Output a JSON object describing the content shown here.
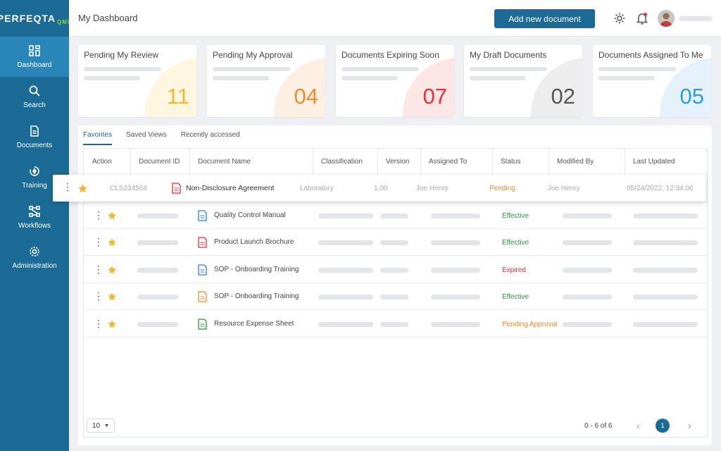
{
  "brand": {
    "logo_text": "PERFEQTA",
    "logo_sub": "QMS"
  },
  "sidebar": {
    "items": [
      {
        "label": "Dashboard",
        "icon": "dashboard-icon",
        "active": true
      },
      {
        "label": "Search",
        "icon": "search-icon",
        "active": false
      },
      {
        "label": "Documents",
        "icon": "document-icon",
        "active": false
      },
      {
        "label": "Training",
        "icon": "training-icon",
        "active": false
      },
      {
        "label": "Workflows",
        "icon": "workflow-icon",
        "active": false
      },
      {
        "label": "Administration",
        "icon": "gear-icon",
        "active": false
      }
    ]
  },
  "header": {
    "title": "My Dashboard",
    "add_button": "Add new document",
    "settings_icon": "gear-icon",
    "bell_icon": "bell-icon"
  },
  "cards": [
    {
      "title": "Pending My Review",
      "count": "11",
      "color": "#f2b632",
      "arc": "#fdf6e1"
    },
    {
      "title": "Pending My Approval",
      "count": "04",
      "color": "#f08a2c",
      "arc": "#fdefe1"
    },
    {
      "title": "Documents Expiring Soon",
      "count": "07",
      "color": "#e5323a",
      "arc": "#fde6e6"
    },
    {
      "title": "My Draft Documents",
      "count": "02",
      "color": "#555555",
      "arc": "#ededed"
    },
    {
      "title": "Documents Assigned To Me",
      "count": "05",
      "color": "#2e9be0",
      "arc": "#e5f2fb"
    }
  ],
  "tabs": [
    {
      "label": "Favorites",
      "active": true
    },
    {
      "label": "Saved Views",
      "active": false
    },
    {
      "label": "Recently accessed",
      "active": false
    }
  ],
  "table": {
    "columns": [
      "Action",
      "Document ID",
      "Document Name",
      "Classification",
      "Version",
      "Assigned To",
      "Status",
      "Modified By",
      "Last Updated"
    ],
    "highlight_row": {
      "id": "CLS234564",
      "name": "Non-Disclosure Agreement",
      "classification": "Laboratory",
      "version": "1.00",
      "assigned_to": "Joe Henry",
      "status": "Pending",
      "modified_by": "Joe Henry",
      "last_updated": "05/24/2022, 12:34:06",
      "icon_color": "#e5323a"
    },
    "rows": [
      {
        "name": "Quality Control Manual",
        "status": "Effective",
        "status_color": "#2a9a3c",
        "icon_color": "#2e7fd6"
      },
      {
        "name": "Product Launch Brochure",
        "status": "Effective",
        "status_color": "#2a9a3c",
        "icon_color": "#e5323a"
      },
      {
        "name": "SOP - Onboarding Training",
        "status": "Expired",
        "status_color": "#e5323a",
        "icon_color": "#2e7fd6"
      },
      {
        "name": "SOP - Onboarding Training",
        "status": "Effective",
        "status_color": "#2a9a3c",
        "icon_color": "#f08a2c"
      },
      {
        "name": "Resource Expense Sheet",
        "status": "Pending Approval",
        "status_color": "#f08a2c",
        "icon_color": "#2a9a3c"
      }
    ]
  },
  "pagination": {
    "page_size": "10",
    "info": "0 - 6 of 6",
    "current_page": "1"
  },
  "colors": {
    "primary": "#1c6b96",
    "star": "#f2b632",
    "pending": "#f08a2c"
  }
}
